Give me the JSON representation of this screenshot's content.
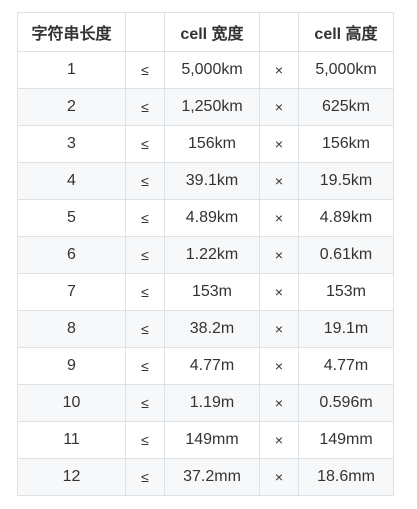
{
  "table": {
    "headers": [
      "字符串长度",
      "",
      "cell 宽度",
      "",
      "cell 高度"
    ],
    "rows": [
      [
        "1",
        "≤",
        "5,000km",
        "×",
        "5,000km"
      ],
      [
        "2",
        "≤",
        "1,250km",
        "×",
        "625km"
      ],
      [
        "3",
        "≤",
        "156km",
        "×",
        "156km"
      ],
      [
        "4",
        "≤",
        "39.1km",
        "×",
        "19.5km"
      ],
      [
        "5",
        "≤",
        "4.89km",
        "×",
        "4.89km"
      ],
      [
        "6",
        "≤",
        "1.22km",
        "×",
        "0.61km"
      ],
      [
        "7",
        "≤",
        "153m",
        "×",
        "153m"
      ],
      [
        "8",
        "≤",
        "38.2m",
        "×",
        "19.1m"
      ],
      [
        "9",
        "≤",
        "4.77m",
        "×",
        "4.77m"
      ],
      [
        "10",
        "≤",
        "1.19m",
        "×",
        "0.596m"
      ],
      [
        "11",
        "≤",
        "149mm",
        "×",
        "149mm"
      ],
      [
        "12",
        "≤",
        "37.2mm",
        "×",
        "18.6mm"
      ]
    ]
  },
  "colors": {
    "border": "#dfe2e5",
    "stripe": "#f6f8fa",
    "text": "#333333"
  }
}
